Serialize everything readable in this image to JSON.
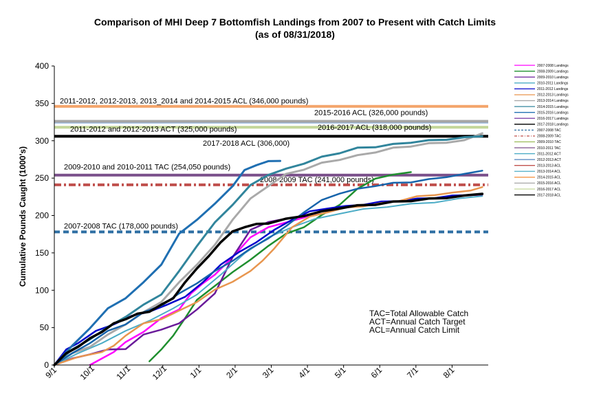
{
  "title_line1": "Comparison of MHI Deep 7 Bottomfish Landings from 2007 to Present with Catch Limits",
  "title_line2": "(as of 08/31/2018)",
  "chart_data": {
    "type": "line",
    "ylabel": "Cumulative Pounds Caught (1000's)",
    "xlabel": "",
    "ylim": [
      0,
      400
    ],
    "yticks": [
      0,
      50,
      100,
      150,
      200,
      250,
      300,
      350,
      400
    ],
    "xticks": [
      "9/1",
      "10/1",
      "11/1",
      "12/1",
      "1/1",
      "2/1",
      "3/1",
      "4/1",
      "5/1",
      "6/1",
      "7/1",
      "8/1"
    ],
    "grid": false,
    "legend_position": "right",
    "limits": [
      {
        "name": "2007-2008 TAC",
        "value": 178,
        "color": "#2e6fa3",
        "style": "dash",
        "label": "2007-2008 TAC (178,000 pounds)"
      },
      {
        "name": "2008-2009 TAC",
        "value": 241,
        "color": "#c0504d",
        "style": "dashdot",
        "label": "2008-2009 TAC (241,000 pounds)"
      },
      {
        "name": "2009-2010 & 2010-2011 TAC",
        "value": 254.05,
        "color": "#7a4f8a",
        "style": "solid",
        "label": "2009-2010 and 2010-2011 TAC (254,050 pounds)"
      },
      {
        "name": "2017-2018 ACL",
        "value": 306,
        "color": "#000000",
        "style": "solid",
        "label": "2017-2018 ACL (306,000)"
      },
      {
        "name": "2016-2017 ACL",
        "value": 318,
        "color": "#c4d79b",
        "style": "solid",
        "label": "2016-2017 ACL (318,000 pounds)"
      },
      {
        "name": "2011-2012/2012-2013 ACT",
        "value": 325,
        "color": "#8db4e2",
        "style": "solid",
        "label": "2011-2012 and 2012-2013 ACT (325,000 pounds)"
      },
      {
        "name": "2015-2016 ACL",
        "value": 326,
        "color": "#a6a6a6",
        "style": "solid",
        "label": "2015-2016 ACL (326,000 pounds)"
      },
      {
        "name": "2011-2015 ACL",
        "value": 346,
        "color": "#f4a46a",
        "style": "solid",
        "label": "2011-2012, 2012-2013, 2013_2014 and 2014-2015 ACL (346,000 pounds)"
      }
    ],
    "series": [
      {
        "name": "2007-2008 Landings",
        "color": "#ff00ff",
        "width": 2.5,
        "x": [
          30,
          40,
          50,
          60,
          75,
          90,
          105,
          115,
          125,
          135,
          150,
          165,
          180,
          195,
          210,
          225,
          240,
          255,
          270,
          285,
          300,
          315,
          330,
          345,
          360
        ],
        "y": [
          0,
          8,
          18,
          30,
          45,
          62,
          75,
          95,
          110,
          120,
          145,
          170,
          185,
          190,
          198,
          205,
          210,
          213,
          215,
          218,
          220,
          222,
          224,
          226,
          228
        ]
      },
      {
        "name": "2008-2009 Landings",
        "color": "#1f8f2f",
        "width": 2.5,
        "x": [
          80,
          90,
          100,
          110,
          120,
          135,
          150,
          165,
          180,
          195,
          210,
          225,
          240,
          255,
          270,
          285,
          300
        ],
        "y": [
          5,
          20,
          40,
          62,
          88,
          105,
          125,
          140,
          160,
          175,
          185,
          200,
          215,
          235,
          250,
          254,
          258
        ]
      },
      {
        "name": "2009-2010 Landings",
        "color": "#6a1b9a",
        "width": 2.5,
        "x": [
          0,
          15,
          30,
          45,
          60,
          75,
          90,
          105,
          120,
          135,
          150,
          165,
          180,
          195,
          210,
          225,
          240,
          255,
          270,
          285,
          300,
          315,
          330,
          345,
          360
        ],
        "y": [
          0,
          8,
          15,
          20,
          22,
          40,
          48,
          55,
          75,
          95,
          145,
          180,
          192,
          195,
          200,
          205,
          210,
          213,
          215,
          218,
          220,
          222,
          224,
          226,
          228
        ]
      },
      {
        "name": "2010-2011 Landings",
        "color": "#4bacc6",
        "width": 2,
        "x": [
          0,
          20,
          40,
          60,
          80,
          100,
          120,
          140,
          160,
          180,
          200,
          220,
          240,
          260,
          280,
          300,
          320,
          340,
          360
        ],
        "y": [
          0,
          15,
          30,
          45,
          60,
          75,
          95,
          120,
          150,
          170,
          185,
          195,
          203,
          208,
          212,
          215,
          218,
          222,
          226
        ]
      },
      {
        "name": "2011-2012 Landings",
        "color": "#0000cc",
        "width": 2.5,
        "x": [
          0,
          10,
          20,
          35,
          50,
          65,
          80,
          95,
          110,
          125,
          140,
          155,
          170,
          185,
          200,
          215,
          230,
          245,
          260,
          275,
          290,
          305,
          320,
          335,
          350,
          360
        ],
        "y": [
          0,
          20,
          30,
          45,
          55,
          65,
          72,
          80,
          92,
          110,
          135,
          150,
          165,
          180,
          195,
          205,
          210,
          212,
          215,
          218,
          220,
          222,
          224,
          226,
          228,
          229
        ]
      },
      {
        "name": "2012-2013 Landings",
        "color": "#e8964f",
        "width": 2.5,
        "x": [
          0,
          20,
          40,
          50,
          60,
          75,
          90,
          105,
          120,
          135,
          150,
          165,
          175,
          185,
          200,
          215,
          230,
          245,
          260,
          275,
          290,
          305,
          320,
          335,
          350,
          360
        ],
        "y": [
          0,
          10,
          18,
          25,
          40,
          55,
          62,
          72,
          85,
          100,
          112,
          125,
          140,
          155,
          185,
          198,
          205,
          210,
          213,
          216,
          220,
          225,
          228,
          230,
          234,
          238
        ]
      },
      {
        "name": "2013-2014 Landings",
        "color": "#a9a9a9",
        "width": 3,
        "x": [
          0,
          15,
          30,
          45,
          60,
          75,
          90,
          105,
          120,
          135,
          150,
          165,
          180,
          195,
          210,
          225,
          240,
          255,
          270,
          285,
          300,
          315,
          330,
          345,
          360
        ],
        "y": [
          0,
          15,
          25,
          40,
          55,
          70,
          85,
          110,
          135,
          160,
          195,
          222,
          240,
          255,
          262,
          270,
          275,
          280,
          285,
          290,
          293,
          296,
          298,
          300,
          310
        ]
      },
      {
        "name": "2014-2015 Landings",
        "color": "#31859c",
        "width": 3,
        "x": [
          0,
          15,
          30,
          45,
          60,
          75,
          90,
          105,
          120,
          135,
          150,
          165,
          180,
          195,
          210,
          225,
          240,
          255,
          270,
          285,
          300,
          315,
          330,
          345,
          360
        ],
        "y": [
          0,
          20,
          35,
          50,
          65,
          80,
          95,
          125,
          160,
          190,
          215,
          240,
          255,
          262,
          270,
          278,
          284,
          290,
          292,
          295,
          298,
          300,
          302,
          304,
          306
        ]
      },
      {
        "name": "2015-2016 Landings",
        "color": "#1f6fb2",
        "width": 3,
        "x": [
          0,
          15,
          30,
          45,
          60,
          75,
          90,
          105,
          120,
          135,
          150,
          160,
          170,
          180,
          190
        ],
        "y": [
          0,
          25,
          50,
          75,
          90,
          110,
          135,
          175,
          195,
          215,
          240,
          260,
          268,
          272,
          273
        ]
      },
      {
        "name": "2016-2017 Landings",
        "color": "#1764ab",
        "width": 2.5,
        "x": [
          0,
          15,
          30,
          45,
          60,
          75,
          90,
          105,
          120,
          135,
          150,
          165,
          180,
          195,
          210,
          225,
          240,
          255,
          270,
          285,
          300,
          315,
          330,
          345,
          360
        ],
        "y": [
          0,
          15,
          30,
          45,
          55,
          70,
          80,
          95,
          110,
          125,
          140,
          155,
          170,
          185,
          205,
          220,
          230,
          235,
          240,
          243,
          245,
          248,
          252,
          255,
          260
        ]
      },
      {
        "name": "2017-2018 Landings",
        "color": "#000000",
        "width": 3.5,
        "x": [
          0,
          10,
          20,
          30,
          40,
          50,
          60,
          70,
          80,
          90,
          100,
          110,
          120,
          130,
          140,
          150,
          160,
          170,
          180,
          195,
          210,
          225,
          240,
          255,
          270,
          285,
          300,
          315,
          330,
          345,
          360
        ],
        "y": [
          0,
          15,
          25,
          35,
          45,
          55,
          62,
          68,
          72,
          80,
          90,
          110,
          130,
          145,
          165,
          178,
          185,
          188,
          190,
          195,
          200,
          205,
          210,
          213,
          215,
          218,
          220,
          222,
          224,
          226,
          229
        ]
      }
    ],
    "legend": [
      {
        "label": "2007-2008 Landings",
        "color": "#ff00ff",
        "style": "solid"
      },
      {
        "label": "2008-2009 Landings",
        "color": "#1f8f2f",
        "style": "solid"
      },
      {
        "label": "2009-2010 Landings",
        "color": "#6a1b9a",
        "style": "solid"
      },
      {
        "label": "2010-2011 Landings",
        "color": "#4bacc6",
        "style": "solid"
      },
      {
        "label": "2011-2012 Landings",
        "color": "#0000cc",
        "style": "solid"
      },
      {
        "label": "2012-2013 Landings",
        "color": "#e8964f",
        "style": "solid"
      },
      {
        "label": "2013-2014 Landings",
        "color": "#a9a9a9",
        "style": "solid"
      },
      {
        "label": "2014-2015 Landings",
        "color": "#31859c",
        "style": "solid"
      },
      {
        "label": "2015-2016 Landings",
        "color": "#1f6fb2",
        "style": "solid"
      },
      {
        "label": "2016-2017 Landings",
        "color": "#7030a0",
        "style": "solid"
      },
      {
        "label": "2017-2018 Landings",
        "color": "#000000",
        "style": "solid"
      },
      {
        "label": "2007-2008 TAC",
        "color": "#2e6fa3",
        "style": "dash"
      },
      {
        "label": "2008-2009 TAC",
        "color": "#c0504d",
        "style": "dashdot"
      },
      {
        "label": "2009-2010 TAC",
        "color": "#9bbb59",
        "style": "solid"
      },
      {
        "label": "2010-2011 TAC",
        "color": "#7a4f8a",
        "style": "solid"
      },
      {
        "label": "2011-2012 ACT",
        "color": "#4bacc6",
        "style": "solid"
      },
      {
        "label": "2012-2013 ACT",
        "color": "#4f81bd",
        "style": "solid"
      },
      {
        "label": "2013-2013 ACL",
        "color": "#c0504d",
        "style": "solid"
      },
      {
        "label": "2013-2014 ACL",
        "color": "#4bacc6",
        "style": "solid"
      },
      {
        "label": "2014-2015 ACL",
        "color": "#f79646",
        "style": "solid"
      },
      {
        "label": "2015-2016 ACL",
        "color": "#a6a6a6",
        "style": "solid"
      },
      {
        "label": "2016-2017 ACL",
        "color": "#c4d79b",
        "style": "solid"
      },
      {
        "label": "2017-2018 ACL",
        "color": "#000000",
        "style": "solid"
      }
    ],
    "notes": [
      "TAC=Total Allowable Catch",
      "ACT=Annual Catch Target",
      "ACL=Annual Catch Limit"
    ]
  }
}
